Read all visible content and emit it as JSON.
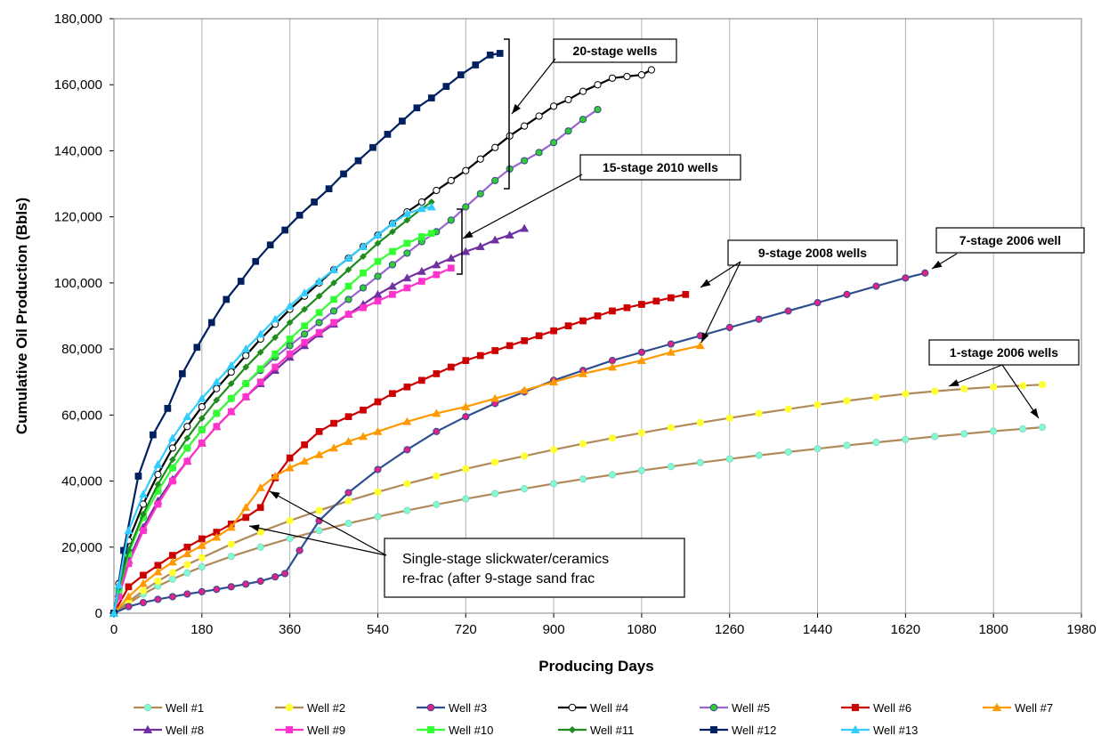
{
  "chart_data": {
    "type": "line",
    "title": "",
    "xlabel": "Producing Days",
    "ylabel": "Cumulative Oil Production (Bbls)",
    "xlim": [
      0,
      1980
    ],
    "ylim": [
      0,
      180000
    ],
    "x_ticks": [
      "0",
      "180",
      "360",
      "540",
      "720",
      "900",
      "1080",
      "1260",
      "1440",
      "1620",
      "1800",
      "1980"
    ],
    "y_ticks": [
      "0",
      "20,000",
      "40,000",
      "60,000",
      "80,000",
      "100,000",
      "120,000",
      "140,000",
      "160,000",
      "180,000"
    ],
    "grid": "vertical",
    "legend_position": "bottom",
    "series": [
      {
        "name": "Well #1",
        "color": "#8DD3C7",
        "marker": "circle",
        "marker_fill": "#7FFFD4",
        "line_color": "#B08A5A",
        "x": [
          0,
          30,
          60,
          90,
          120,
          150,
          180,
          240,
          300,
          360,
          420,
          480,
          540,
          600,
          660,
          720,
          780,
          840,
          900,
          960,
          1020,
          1080,
          1140,
          1200,
          1260,
          1320,
          1380,
          1440,
          1500,
          1560,
          1620,
          1680,
          1740,
          1800,
          1860,
          1900
        ],
        "y": [
          0,
          3000,
          5800,
          8200,
          10300,
          12200,
          14000,
          17200,
          20000,
          22600,
          25000,
          27200,
          29200,
          31100,
          32900,
          34600,
          36200,
          37700,
          39200,
          40600,
          41900,
          43200,
          44400,
          45600,
          46700,
          47800,
          48800,
          49800,
          50800,
          51700,
          52600,
          53500,
          54300,
          55100,
          55800,
          56300
        ]
      },
      {
        "name": "Well #2",
        "color": "#FFFF33",
        "marker": "circle",
        "marker_fill": "#FFFF33",
        "line_color": "#B08A5A",
        "x": [
          0,
          30,
          60,
          90,
          120,
          150,
          180,
          240,
          300,
          360,
          420,
          480,
          540,
          600,
          660,
          720,
          780,
          840,
          900,
          960,
          1020,
          1080,
          1140,
          1200,
          1260,
          1320,
          1380,
          1440,
          1500,
          1560,
          1620,
          1680,
          1740,
          1800,
          1860,
          1900
        ],
        "y": [
          0,
          3500,
          6800,
          9700,
          12300,
          14700,
          16800,
          20900,
          24600,
          28000,
          31100,
          34000,
          36700,
          39200,
          41500,
          43700,
          45700,
          47600,
          49500,
          51300,
          53000,
          54600,
          56200,
          57700,
          59100,
          60500,
          61800,
          63100,
          64300,
          65400,
          66400,
          67200,
          67900,
          68500,
          68900,
          69200
        ]
      },
      {
        "name": "Well #3",
        "color": "#2F4F8F",
        "marker": "circle",
        "marker_fill": "#E0218A",
        "line_color": "#2F4F8F",
        "x": [
          0,
          30,
          60,
          90,
          120,
          150,
          180,
          210,
          240,
          270,
          300,
          330,
          350,
          380,
          420,
          480,
          540,
          600,
          660,
          720,
          780,
          840,
          900,
          960,
          1020,
          1080,
          1140,
          1200,
          1260,
          1320,
          1380,
          1440,
          1500,
          1560,
          1620,
          1660
        ],
        "y": [
          0,
          2000,
          3200,
          4200,
          5000,
          5800,
          6500,
          7200,
          8000,
          8800,
          9700,
          11000,
          12000,
          19000,
          28000,
          36500,
          43500,
          49500,
          55000,
          59500,
          63500,
          67000,
          70500,
          73500,
          76500,
          79000,
          81500,
          84000,
          86500,
          89000,
          91500,
          94000,
          96500,
          99000,
          101500,
          103000
        ]
      },
      {
        "name": "Well #4",
        "color": "#000000",
        "marker": "circle",
        "marker_fill": "#FFFFFF",
        "line_color": "#000000",
        "x": [
          0,
          10,
          30,
          60,
          90,
          120,
          150,
          180,
          210,
          240,
          270,
          300,
          330,
          360,
          390,
          420,
          450,
          480,
          510,
          540,
          570,
          600,
          630,
          660,
          690,
          720,
          750,
          780,
          810,
          840,
          870,
          900,
          930,
          960,
          990,
          1020,
          1050,
          1080,
          1100
        ],
        "y": [
          0,
          9000,
          22000,
          33000,
          42000,
          50000,
          56500,
          62500,
          68000,
          73000,
          78000,
          83000,
          87500,
          92000,
          96000,
          100000,
          104000,
          107500,
          111000,
          114500,
          118000,
          121500,
          124500,
          128000,
          131000,
          134000,
          137500,
          141000,
          144500,
          147500,
          150500,
          153500,
          155500,
          158000,
          160000,
          162000,
          162500,
          163000,
          164500
        ]
      },
      {
        "name": "Well #5",
        "color": "#2F4F8F",
        "marker": "circle",
        "marker_fill": "#33CC33",
        "line_color": "#9966CC",
        "x": [
          0,
          10,
          30,
          60,
          90,
          120,
          150,
          180,
          210,
          240,
          270,
          300,
          330,
          360,
          390,
          420,
          450,
          480,
          510,
          540,
          570,
          600,
          630,
          660,
          690,
          720,
          750,
          780,
          810,
          840,
          870,
          900,
          930,
          960,
          990
        ],
        "y": [
          0,
          7000,
          19000,
          29000,
          37000,
          44000,
          50000,
          55500,
          60500,
          65000,
          69500,
          73500,
          77500,
          81000,
          84500,
          88000,
          91500,
          95000,
          98500,
          102000,
          105500,
          109000,
          112500,
          115500,
          119000,
          123000,
          127000,
          131000,
          134500,
          137000,
          139500,
          142500,
          146000,
          149500,
          152500
        ]
      },
      {
        "name": "Well #6",
        "color": "#CC0000",
        "marker": "square",
        "marker_fill": "#CC0000",
        "line_color": "#CC0000",
        "x": [
          0,
          30,
          60,
          90,
          120,
          150,
          180,
          210,
          240,
          270,
          300,
          330,
          360,
          390,
          420,
          450,
          480,
          510,
          540,
          570,
          600,
          630,
          660,
          690,
          720,
          750,
          780,
          810,
          840,
          870,
          900,
          930,
          960,
          990,
          1020,
          1050,
          1080,
          1110,
          1140,
          1170
        ],
        "y": [
          0,
          8000,
          11500,
          14500,
          17500,
          20000,
          22500,
          24500,
          27000,
          29000,
          32000,
          41000,
          47000,
          51000,
          55000,
          57500,
          59500,
          61500,
          64000,
          66500,
          68500,
          70500,
          72500,
          74500,
          76500,
          78000,
          79500,
          81000,
          82500,
          84000,
          85500,
          87000,
          88500,
          90000,
          91500,
          92500,
          93500,
          94500,
          95500,
          96500
        ]
      },
      {
        "name": "Well #7",
        "color": "#FF9900",
        "marker": "triangle",
        "marker_fill": "#FF9900",
        "line_color": "#FF9900",
        "x": [
          0,
          30,
          60,
          90,
          120,
          150,
          180,
          210,
          240,
          270,
          300,
          330,
          360,
          390,
          420,
          450,
          480,
          510,
          540,
          600,
          660,
          720,
          780,
          840,
          900,
          960,
          1020,
          1080,
          1140,
          1200
        ],
        "y": [
          0,
          5000,
          9000,
          12500,
          15500,
          18000,
          20500,
          23000,
          26000,
          32000,
          38000,
          41500,
          44000,
          46000,
          48000,
          50000,
          52000,
          53500,
          55000,
          58000,
          60500,
          62500,
          65000,
          67500,
          70000,
          72500,
          74500,
          76500,
          79000,
          81000
        ]
      },
      {
        "name": "Well #8",
        "color": "#7030A0",
        "marker": "triangle",
        "marker_fill": "#7030A0",
        "line_color": "#7030A0",
        "x": [
          0,
          10,
          30,
          60,
          90,
          120,
          150,
          180,
          210,
          240,
          270,
          300,
          330,
          360,
          390,
          420,
          450,
          480,
          510,
          540,
          570,
          600,
          630,
          660,
          690,
          720,
          750,
          780,
          810,
          840
        ],
        "y": [
          0,
          6000,
          16000,
          26000,
          34000,
          40500,
          46000,
          51500,
          56500,
          61000,
          65500,
          69500,
          73500,
          77500,
          81000,
          84500,
          87500,
          90500,
          93500,
          96500,
          99000,
          101500,
          103500,
          105500,
          107500,
          109500,
          111000,
          113000,
          114500,
          116500
        ]
      },
      {
        "name": "Well #9",
        "color": "#FF33CC",
        "marker": "square",
        "marker_fill": "#FF33CC",
        "line_color": "#FF33CC",
        "x": [
          0,
          10,
          30,
          60,
          90,
          120,
          150,
          180,
          210,
          240,
          270,
          300,
          330,
          360,
          390,
          420,
          450,
          480,
          510,
          540,
          570,
          600,
          630,
          660,
          690
        ],
        "y": [
          0,
          5000,
          15000,
          25000,
          33000,
          40000,
          46000,
          51500,
          56500,
          61000,
          65500,
          70000,
          74500,
          78500,
          82000,
          85000,
          88000,
          90500,
          92500,
          94500,
          96500,
          98500,
          100500,
          102500,
          104500
        ]
      },
      {
        "name": "Well #10",
        "color": "#33FF33",
        "marker": "square",
        "marker_fill": "#33FF33",
        "line_color": "#33FF33",
        "x": [
          0,
          10,
          30,
          60,
          90,
          120,
          150,
          180,
          210,
          240,
          270,
          300,
          330,
          360,
          390,
          420,
          450,
          480,
          510,
          540,
          570,
          600,
          630,
          650
        ],
        "y": [
          0,
          7000,
          18000,
          29000,
          37000,
          44000,
          50000,
          55500,
          60500,
          65000,
          69500,
          74000,
          78500,
          83000,
          87000,
          91000,
          95000,
          99000,
          103000,
          106500,
          109500,
          112000,
          114000,
          115000
        ]
      },
      {
        "name": "Well #11",
        "color": "#1E8C1E",
        "marker": "diamond",
        "marker_fill": "#1E8C1E",
        "line_color": "#1E8C1E",
        "x": [
          0,
          10,
          30,
          60,
          90,
          120,
          150,
          180,
          210,
          240,
          270,
          300,
          330,
          360,
          390,
          420,
          450,
          480,
          510,
          540,
          570,
          600,
          630,
          650
        ],
        "y": [
          0,
          7500,
          19000,
          30000,
          39000,
          46500,
          53000,
          59000,
          64500,
          69500,
          74500,
          79000,
          83500,
          88000,
          92000,
          96000,
          100000,
          104000,
          108000,
          112000,
          115500,
          119000,
          122500,
          124500
        ]
      },
      {
        "name": "Well #12",
        "color": "#002060",
        "marker": "square",
        "marker_fill": "#002060",
        "line_color": "#002060",
        "x": [
          0,
          20,
          50,
          80,
          110,
          140,
          170,
          200,
          230,
          260,
          290,
          320,
          350,
          380,
          410,
          440,
          470,
          500,
          530,
          560,
          590,
          620,
          650,
          680,
          710,
          740,
          770,
          790
        ],
        "y": [
          0,
          19000,
          41500,
          54000,
          62000,
          72500,
          80500,
          88000,
          95000,
          100500,
          106500,
          111500,
          116000,
          120500,
          124500,
          128500,
          133000,
          137000,
          141000,
          145000,
          149000,
          153000,
          156000,
          159500,
          163000,
          166000,
          169000,
          169500
        ]
      },
      {
        "name": "Well #13",
        "color": "#33CCFF",
        "marker": "triangle",
        "marker_fill": "#33CCFF",
        "line_color": "#33CCFF",
        "x": [
          0,
          10,
          30,
          60,
          90,
          120,
          150,
          180,
          210,
          240,
          270,
          300,
          330,
          360,
          390,
          420,
          450,
          480,
          510,
          540,
          570,
          600,
          630,
          650
        ],
        "y": [
          0,
          8500,
          25000,
          36000,
          45000,
          53000,
          59500,
          65000,
          70000,
          75000,
          80000,
          84500,
          89000,
          93000,
          97000,
          100500,
          104000,
          107500,
          111000,
          114500,
          118000,
          121000,
          122500,
          123000
        ]
      }
    ],
    "annotations": [
      {
        "text": "20-stage wells"
      },
      {
        "text": "15-stage 2010 wells"
      },
      {
        "text": "9-stage 2008 wells"
      },
      {
        "text": "7-stage 2006 well"
      },
      {
        "text": "1-stage 2006 wells"
      },
      {
        "text": "Single-stage slickwater/ceramics\nre-frac (after 9-stage sand frac"
      }
    ]
  }
}
